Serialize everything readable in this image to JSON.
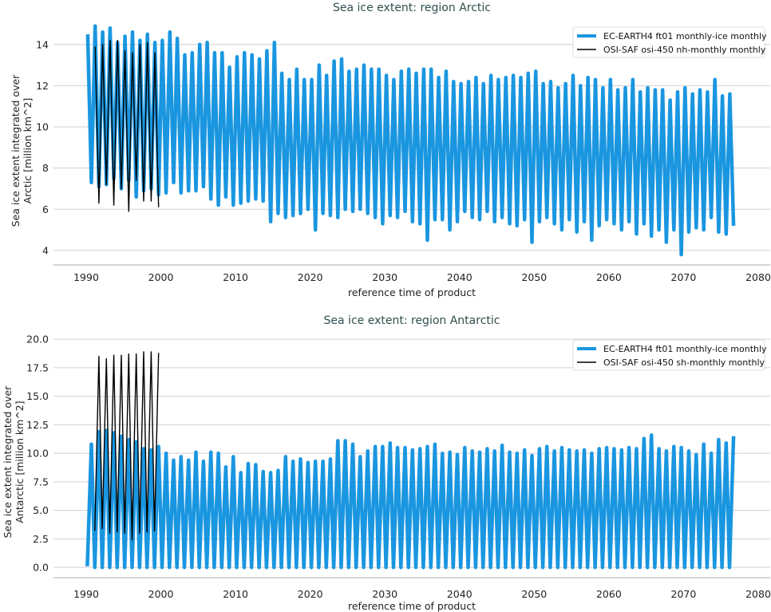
{
  "chart_data": [
    {
      "type": "line",
      "title": "Sea ice extent: region Arctic",
      "xlabel": "reference time of product",
      "ylabel": [
        "Sea ice extent integrated over",
        "Arctic [million km^2]"
      ],
      "xlim": [
        1986,
        2081
      ],
      "ylim": [
        3.3,
        15.0
      ],
      "xticks": [
        1990,
        2000,
        2010,
        2020,
        2030,
        2040,
        2050,
        2060,
        2070,
        2080
      ],
      "yticks": [
        4,
        6,
        8,
        10,
        12,
        14
      ],
      "ytick_labels": [
        "4",
        "6",
        "8",
        "10",
        "12",
        "14"
      ],
      "grid": "horizontal",
      "legend_placement": "top-right",
      "season": {
        "max_phase": 0.2,
        "min_phase": 0.7
      },
      "series": [
        {
          "name": "EC-EARTH4 ft01 monthly-ice monthly",
          "color": "#1a96e0",
          "start_year": 1990,
          "annual_max": [
            14.5,
            14.9,
            14.6,
            14.8,
            14.1,
            14.4,
            14.6,
            14.2,
            14.5,
            14.1,
            14.2,
            14.6,
            14.3,
            13.5,
            13.6,
            14.0,
            14.1,
            13.6,
            13.6,
            12.9,
            13.4,
            13.6,
            13.5,
            13.3,
            13.7,
            14.1,
            12.6,
            12.3,
            12.8,
            12.3,
            12.3,
            13.0,
            12.5,
            13.2,
            13.3,
            12.7,
            12.8,
            13.0,
            12.8,
            12.8,
            12.5,
            12.3,
            12.7,
            12.8,
            12.6,
            12.8,
            12.8,
            12.4,
            12.7,
            12.2,
            12.1,
            12.2,
            12.4,
            12.1,
            12.5,
            12.3,
            12.4,
            12.5,
            12.4,
            12.6,
            12.7,
            12.1,
            12.2,
            11.9,
            12.1,
            12.5,
            12.0,
            12.4,
            12.3,
            11.9,
            12.3,
            11.8,
            11.9,
            12.3,
            11.7,
            11.9,
            11.8,
            11.8,
            11.3,
            11.7,
            11.9,
            11.6,
            11.8,
            11.7,
            12.3,
            11.5,
            11.6
          ],
          "annual_min": [
            7.3,
            7.1,
            7.2,
            7.5,
            7.0,
            7.4,
            6.6,
            6.9,
            7.0,
            6.7,
            6.8,
            7.3,
            6.8,
            6.9,
            6.9,
            7.1,
            6.5,
            6.2,
            6.6,
            6.2,
            6.3,
            6.4,
            6.5,
            6.4,
            5.4,
            5.8,
            5.6,
            5.7,
            5.8,
            6.0,
            5.0,
            5.8,
            5.7,
            5.6,
            6.0,
            5.9,
            6.0,
            5.8,
            5.6,
            5.3,
            5.7,
            5.6,
            5.9,
            5.4,
            5.3,
            4.5,
            5.5,
            5.5,
            5.0,
            5.4,
            5.9,
            5.6,
            5.5,
            5.9,
            5.4,
            5.6,
            5.3,
            5.2,
            5.5,
            4.4,
            5.4,
            5.6,
            5.3,
            5.0,
            5.5,
            4.9,
            5.4,
            4.5,
            5.2,
            5.5,
            5.3,
            5.0,
            5.4,
            4.8,
            5.3,
            4.7,
            5.0,
            4.4,
            5.0,
            3.8,
            4.9,
            5.1,
            5.0,
            5.6,
            4.9,
            4.8,
            5.2
          ]
        },
        {
          "name": "OSI-SAF osi-450 nh-monthly monthly",
          "color": "#000000",
          "start_year": 1991,
          "annual_max": [
            13.9,
            14.0,
            14.2,
            14.2,
            13.7,
            13.6,
            14.0,
            14.1,
            13.6
          ],
          "annual_min": [
            6.3,
            7.2,
            6.2,
            7.0,
            5.9,
            7.4,
            6.4,
            6.4,
            6.1
          ]
        }
      ]
    },
    {
      "type": "line",
      "title": "Sea ice extent: region Antarctic",
      "xlabel": "reference time of product",
      "ylabel": [
        "Sea ice extent integrated over",
        "Antarctic [million km^2]"
      ],
      "xlim": [
        1986,
        2081
      ],
      "ylim": [
        -0.9,
        20.5
      ],
      "xticks": [
        1990,
        2000,
        2010,
        2020,
        2030,
        2040,
        2050,
        2060,
        2070,
        2080
      ],
      "yticks": [
        0,
        2.5,
        5,
        7.5,
        10,
        12.5,
        15,
        17.5,
        20
      ],
      "ytick_labels": [
        "0.0",
        "2.5",
        "5.0",
        "7.5",
        "10.0",
        "12.5",
        "15.0",
        "17.5",
        "20.0"
      ],
      "grid": "horizontal",
      "legend_placement": "top-right",
      "season": {
        "max_phase": 0.7,
        "min_phase": 0.15
      },
      "series": [
        {
          "name": "EC-EARTH4 ft01 monthly-ice monthly",
          "color": "#1a96e0",
          "start_year": 1990,
          "annual_max": [
            10.8,
            11.9,
            12.0,
            11.8,
            11.5,
            11.2,
            11.0,
            10.4,
            10.3,
            10.6,
            10.0,
            9.4,
            9.7,
            9.4,
            10.1,
            9.3,
            10.1,
            10.0,
            8.8,
            9.7,
            8.3,
            9.1,
            9.0,
            8.4,
            8.3,
            8.5,
            9.7,
            9.3,
            9.5,
            9.2,
            9.3,
            9.3,
            9.5,
            11.1,
            11.1,
            10.8,
            9.7,
            10.2,
            10.6,
            10.6,
            10.9,
            10.5,
            10.5,
            10.3,
            10.4,
            10.6,
            10.8,
            10.0,
            10.1,
            9.9,
            10.5,
            10.2,
            10.1,
            10.4,
            10.2,
            10.7,
            10.1,
            10.0,
            10.3,
            9.8,
            10.4,
            10.6,
            10.2,
            10.5,
            10.3,
            10.2,
            10.3,
            10.0,
            10.4,
            10.5,
            10.4,
            10.3,
            10.5,
            10.4,
            11.3,
            11.6,
            10.4,
            10.2,
            10.6,
            10.5,
            10.2,
            9.9,
            10.8,
            10.0,
            11.2,
            10.9,
            11.5
          ],
          "annual_min": [
            0.1,
            0.0,
            0.0,
            0.0,
            0.0,
            0.0,
            0.0,
            0.0,
            0.0,
            0.0,
            0.0,
            0.0,
            0.0,
            0.0,
            0.0,
            0.0,
            0.0,
            0.0,
            0.0,
            0.0,
            0.0,
            0.0,
            0.0,
            0.0,
            0.0,
            0.0,
            0.0,
            0.0,
            0.0,
            0.0,
            0.0,
            0.0,
            0.0,
            0.0,
            0.0,
            0.0,
            0.0,
            0.0,
            0.0,
            0.0,
            0.0,
            0.0,
            0.0,
            0.0,
            0.0,
            0.0,
            0.0,
            0.0,
            0.0,
            0.0,
            0.0,
            0.0,
            0.0,
            0.0,
            0.0,
            0.0,
            0.0,
            0.0,
            0.0,
            0.0,
            0.0,
            0.0,
            0.0,
            0.0,
            0.0,
            0.0,
            0.0,
            0.0,
            0.0,
            0.0,
            0.0,
            0.0,
            0.0,
            0.0,
            0.0,
            0.0,
            0.0,
            0.0,
            0.0,
            0.0,
            0.0,
            0.0,
            0.0,
            0.0,
            0.0,
            0.0,
            0.0
          ]
        },
        {
          "name": "OSI-SAF osi-450 sh-monthly monthly",
          "color": "#000000",
          "start_year": 1991,
          "annual_max": [
            18.5,
            18.3,
            18.6,
            18.6,
            18.7,
            18.7,
            18.9,
            18.9,
            18.8
          ],
          "annual_min": [
            3.2,
            3.4,
            3.0,
            3.1,
            3.0,
            2.4,
            3.0,
            3.1,
            3.2
          ]
        }
      ]
    }
  ]
}
